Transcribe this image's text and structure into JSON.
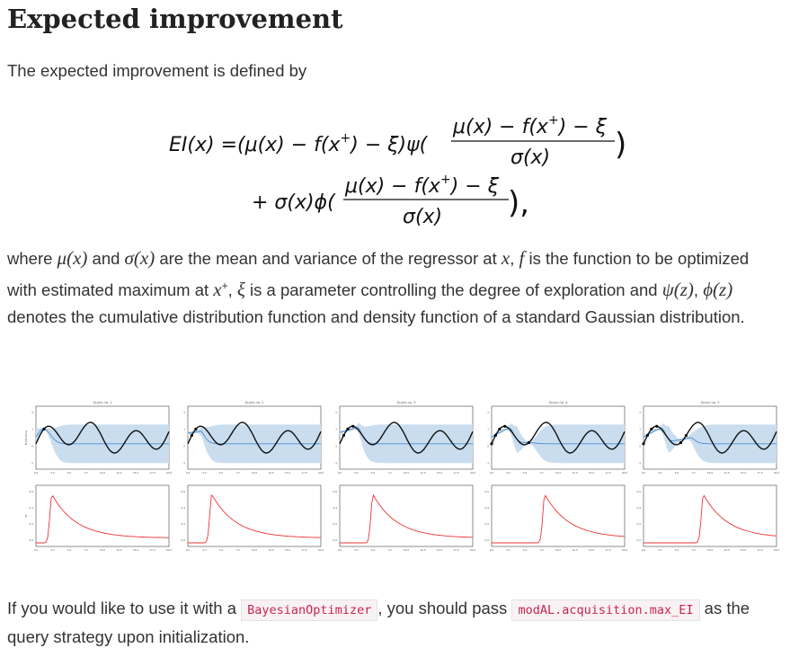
{
  "heading": "Expected improvement",
  "intro": "The expected improvement is defined by",
  "formula": {
    "line1_lhs": "EI(x) =(μ(x) − f(x",
    "line1_mid": ") − ξ)ψ(",
    "line2_lhs": "+ σ(x)ϕ(",
    "frac_num_a": "μ(x) − f(x",
    "frac_num_b": ") − ξ",
    "frac_den": "σ(x)",
    "plus_sup": "+",
    "close_paren": ")",
    "close_paren_comma": "),"
  },
  "where": {
    "t1": "where ",
    "mu": "μ(x)",
    "t2": " and ",
    "sigma": "σ(x)",
    "t3": " are the mean and variance of the regressor at ",
    "x": "x",
    "t4": ", ",
    "f": "f",
    "t5": " is the function to be optimized with estimated maximum at ",
    "xplus": "x",
    "xplus_sup": "+",
    "t6": ", ",
    "xi": "ξ",
    "t7": " is a parameter controlling the degree of exploration and ",
    "psi": "ψ(z)",
    "t8": ", ",
    "phi": "ϕ(z)",
    "t9": " denotes the cumulative distribution function and density function of a standard Gaussian distribution."
  },
  "figure": {
    "queries": [
      "Query no. 1",
      "Query no. 2",
      "Query no. 3",
      "Query no. 4",
      "Query no. 5"
    ],
    "top_ylabel": "Predictions",
    "bottom_ylabel": "EI",
    "x_ticks": [
      "0.0",
      "2.5",
      "5.0",
      "7.5",
      "10.0",
      "12.5",
      "15.0",
      "17.5",
      "20.0"
    ],
    "top_y_ticks": [
      "2",
      "1",
      "0",
      "-1"
    ],
    "bottom_y_ticks": [
      "0.6",
      "0.4",
      "0.2",
      "0.0"
    ],
    "colors": {
      "true_fn": "#111111",
      "mean": "#4a8fd0",
      "band": "#c9ddef",
      "acq": "#ee3333",
      "points": "#000000"
    }
  },
  "bottom": {
    "t1": "If you would like to use it with a ",
    "code1": "BayesianOptimizer",
    "t2": ", you should pass ",
    "code2": "modAL.acquisition.max_EI",
    "t3": " as the query strategy upon initialization."
  }
}
